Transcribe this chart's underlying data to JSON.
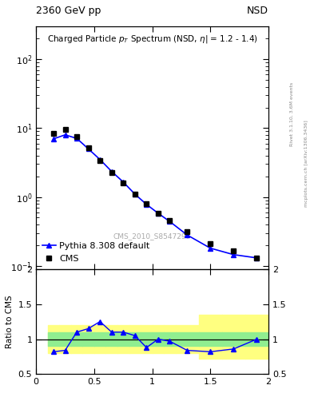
{
  "title_top_left": "2360 GeV pp",
  "title_top_right": "NSD",
  "main_title": "Charged Particle p_{T} Spectrum (NSD, |\\eta| = 1.2 - 1.4)",
  "watermark": "CMS_2010_S8547297",
  "right_label": "Rivet 3.1.10, 3.6M events",
  "right_label2": "mcplots.cern.ch [arXiv:1306.3436]",
  "cms_pt": [
    0.15,
    0.25,
    0.35,
    0.45,
    0.55,
    0.65,
    0.75,
    0.85,
    0.95,
    1.05,
    1.15,
    1.3,
    1.5,
    1.7,
    1.9
  ],
  "cms_val": [
    8.5,
    9.5,
    7.5,
    5.2,
    3.4,
    2.25,
    1.6,
    1.1,
    0.8,
    0.58,
    0.46,
    0.31,
    0.21,
    0.165,
    0.13
  ],
  "pythia_pt": [
    0.15,
    0.25,
    0.35,
    0.45,
    0.55,
    0.65,
    0.75,
    0.85,
    0.95,
    1.05,
    1.15,
    1.3,
    1.5,
    1.7,
    1.9
  ],
  "pythia_val": [
    7.0,
    8.0,
    7.1,
    5.0,
    3.5,
    2.35,
    1.65,
    1.1,
    0.78,
    0.58,
    0.44,
    0.28,
    0.18,
    0.145,
    0.13
  ],
  "ratio_pt": [
    0.15,
    0.25,
    0.35,
    0.45,
    0.55,
    0.65,
    0.75,
    0.85,
    0.95,
    1.05,
    1.15,
    1.3,
    1.5,
    1.7,
    1.9
  ],
  "ratio_val": [
    0.82,
    0.84,
    1.1,
    1.15,
    1.25,
    1.1,
    1.1,
    1.05,
    0.88,
    1.0,
    0.97,
    0.84,
    0.82,
    0.86,
    1.0
  ],
  "band_x_edges": [
    0.1,
    0.2,
    0.3,
    0.4,
    0.5,
    0.6,
    0.7,
    0.8,
    0.9,
    1.0,
    1.1,
    1.2,
    1.4,
    1.6,
    1.8,
    2.0
  ],
  "green_band_low": [
    0.9,
    0.9,
    0.9,
    0.9,
    0.9,
    0.9,
    0.9,
    0.9,
    0.9,
    0.9,
    0.9,
    0.9,
    0.9,
    0.9,
    0.9
  ],
  "green_band_high": [
    1.1,
    1.1,
    1.1,
    1.1,
    1.1,
    1.1,
    1.1,
    1.1,
    1.1,
    1.1,
    1.1,
    1.1,
    1.1,
    1.1,
    1.1
  ],
  "yellow_band_low": [
    0.8,
    0.8,
    0.8,
    0.8,
    0.8,
    0.8,
    0.8,
    0.8,
    0.8,
    0.8,
    0.8,
    0.8,
    0.72,
    0.72,
    0.72
  ],
  "yellow_band_high": [
    1.2,
    1.2,
    1.2,
    1.2,
    1.2,
    1.2,
    1.2,
    1.2,
    1.2,
    1.2,
    1.2,
    1.2,
    1.35,
    1.35,
    1.35
  ],
  "xlim": [
    0.0,
    2.0
  ],
  "ylim_main": [
    0.09,
    300
  ],
  "ylim_ratio": [
    0.5,
    2.0
  ],
  "legend_cms": "CMS",
  "legend_pythia": "Pythia 8.308 default",
  "cms_color": "black",
  "pythia_color": "blue",
  "green_color": "#90EE90",
  "yellow_color": "#FFFF80",
  "background_color": "white"
}
